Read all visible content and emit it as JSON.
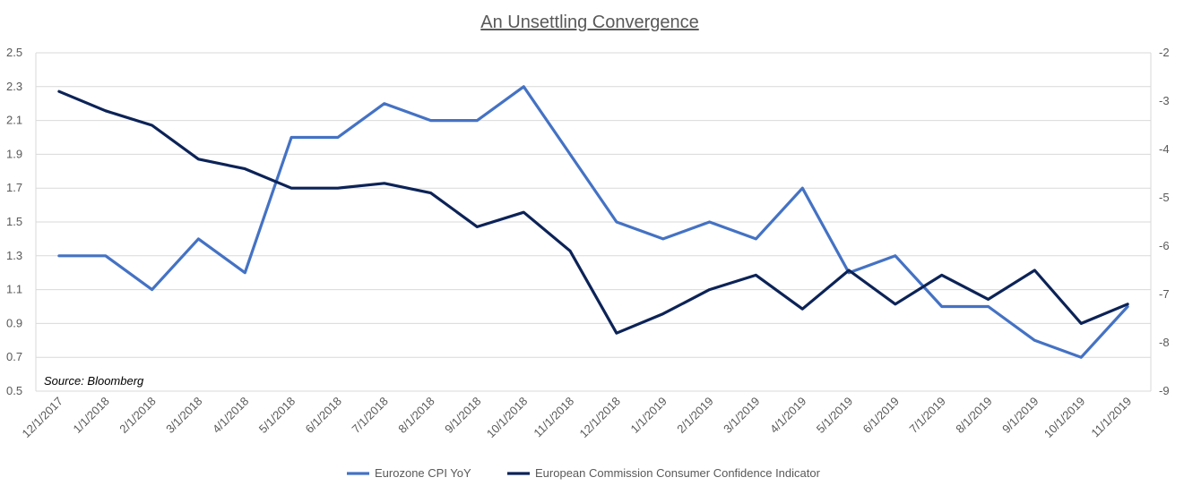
{
  "chart_data": {
    "type": "line",
    "title": "An Unsettling Convergence",
    "annotation": "Source: Bloomberg",
    "categories": [
      "12/1/2017",
      "1/1/2018",
      "2/1/2018",
      "3/1/2018",
      "4/1/2018",
      "5/1/2018",
      "6/1/2018",
      "7/1/2018",
      "8/1/2018",
      "9/1/2018",
      "10/1/2018",
      "11/1/2018",
      "12/1/2018",
      "1/1/2019",
      "2/1/2019",
      "3/1/2019",
      "4/1/2019",
      "5/1/2019",
      "6/1/2019",
      "7/1/2019",
      "8/1/2019",
      "9/1/2019",
      "10/1/2019",
      "11/1/2019"
    ],
    "y_left": {
      "ylim": [
        0.5,
        2.5
      ],
      "ticks": [
        "2.5",
        "2.3",
        "2.1",
        "1.9",
        "1.7",
        "1.5",
        "1.3",
        "1.1",
        "0.9",
        "0.7",
        "0.5"
      ]
    },
    "y_right": {
      "ylim": [
        -9,
        -2
      ],
      "ticks": [
        "-2",
        "-3",
        "-4",
        "-5",
        "-6",
        "-7",
        "-8",
        "-9"
      ]
    },
    "grid": true,
    "legend_position": "bottom",
    "series": [
      {
        "name": "Eurozone CPI YoY",
        "axis": "left",
        "color": "#4472C4",
        "values": [
          1.3,
          1.3,
          1.1,
          1.4,
          1.2,
          2.0,
          2.0,
          2.2,
          2.1,
          2.1,
          2.3,
          1.9,
          1.5,
          1.4,
          1.5,
          1.4,
          1.7,
          1.2,
          1.3,
          1.0,
          1.0,
          0.8,
          0.7,
          1.0
        ]
      },
      {
        "name": "European Commission Consumer Confidence Indicator",
        "axis": "right",
        "color": "#0C2357",
        "values": [
          -2.8,
          -3.2,
          -3.5,
          -4.2,
          -4.4,
          -4.8,
          -4.8,
          -4.7,
          -4.9,
          -5.6,
          -5.3,
          -6.1,
          -7.8,
          -7.4,
          -6.9,
          -6.6,
          -7.3,
          -6.5,
          -7.2,
          -6.6,
          -7.1,
          -6.5,
          -7.6,
          -7.2
        ]
      }
    ]
  }
}
